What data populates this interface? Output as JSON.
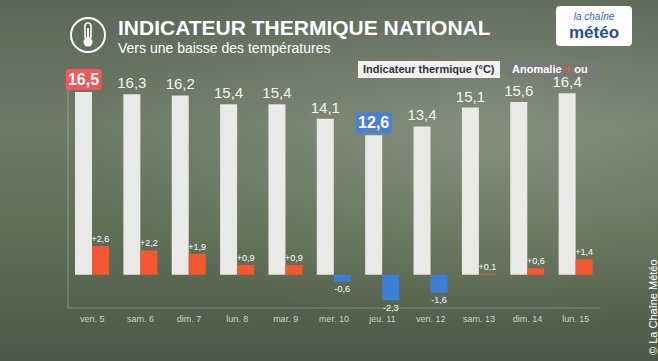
{
  "chart_data": {
    "type": "bar",
    "title": "INDICATEUR THERMIQUE NATIONAL",
    "subtitle": "Vers une baisse des températures",
    "annotations": [
      "la chaîne",
      "météo",
      "© La Chaîne Météo"
    ],
    "categories": [
      "ven. 5",
      "sam. 6",
      "dim. 7",
      "lun. 8",
      "mar. 9",
      "mer. 10",
      "jeu. 11",
      "ven. 12",
      "sam. 13",
      "dim. 14",
      "lun. 15"
    ],
    "series": [
      {
        "name": "Indicateur thermique (°C)",
        "color": "#e9e9e7",
        "values": [
          16.5,
          16.3,
          16.2,
          15.4,
          15.4,
          14.1,
          12.6,
          13.4,
          15.1,
          15.6,
          16.4
        ],
        "value_labels": [
          "16,5",
          "16,3",
          "16,2",
          "15,4",
          "15,4",
          "14,1",
          "12,6",
          "13,4",
          "15,1",
          "15,6",
          "16,4"
        ]
      },
      {
        "name": "Anomalie + ou -",
        "colors": [
          "#f4572f",
          "#f4572f",
          "#f4572f",
          "#f4572f",
          "#f4572f",
          "#3c7fd6",
          "#3c7fd6",
          "#3c7fd6",
          "#f4572f",
          "#f4572f",
          "#f4572f"
        ],
        "values": [
          2.6,
          2.2,
          1.9,
          0.9,
          0.9,
          -0.6,
          -2.3,
          -1.6,
          0.1,
          0.6,
          1.4
        ],
        "value_labels": [
          "+2,6",
          "+2,2",
          "+1,9",
          "+0,9",
          "+0,9",
          "-0,6",
          "-2,3",
          "-1,6",
          "+0,1",
          "+0,6",
          "+1,4"
        ]
      }
    ],
    "ylim": [
      -3,
      17.5
    ],
    "yticks": [],
    "tick_labels": "x",
    "data_labels": true,
    "grid": false,
    "legend": "top right"
  }
}
